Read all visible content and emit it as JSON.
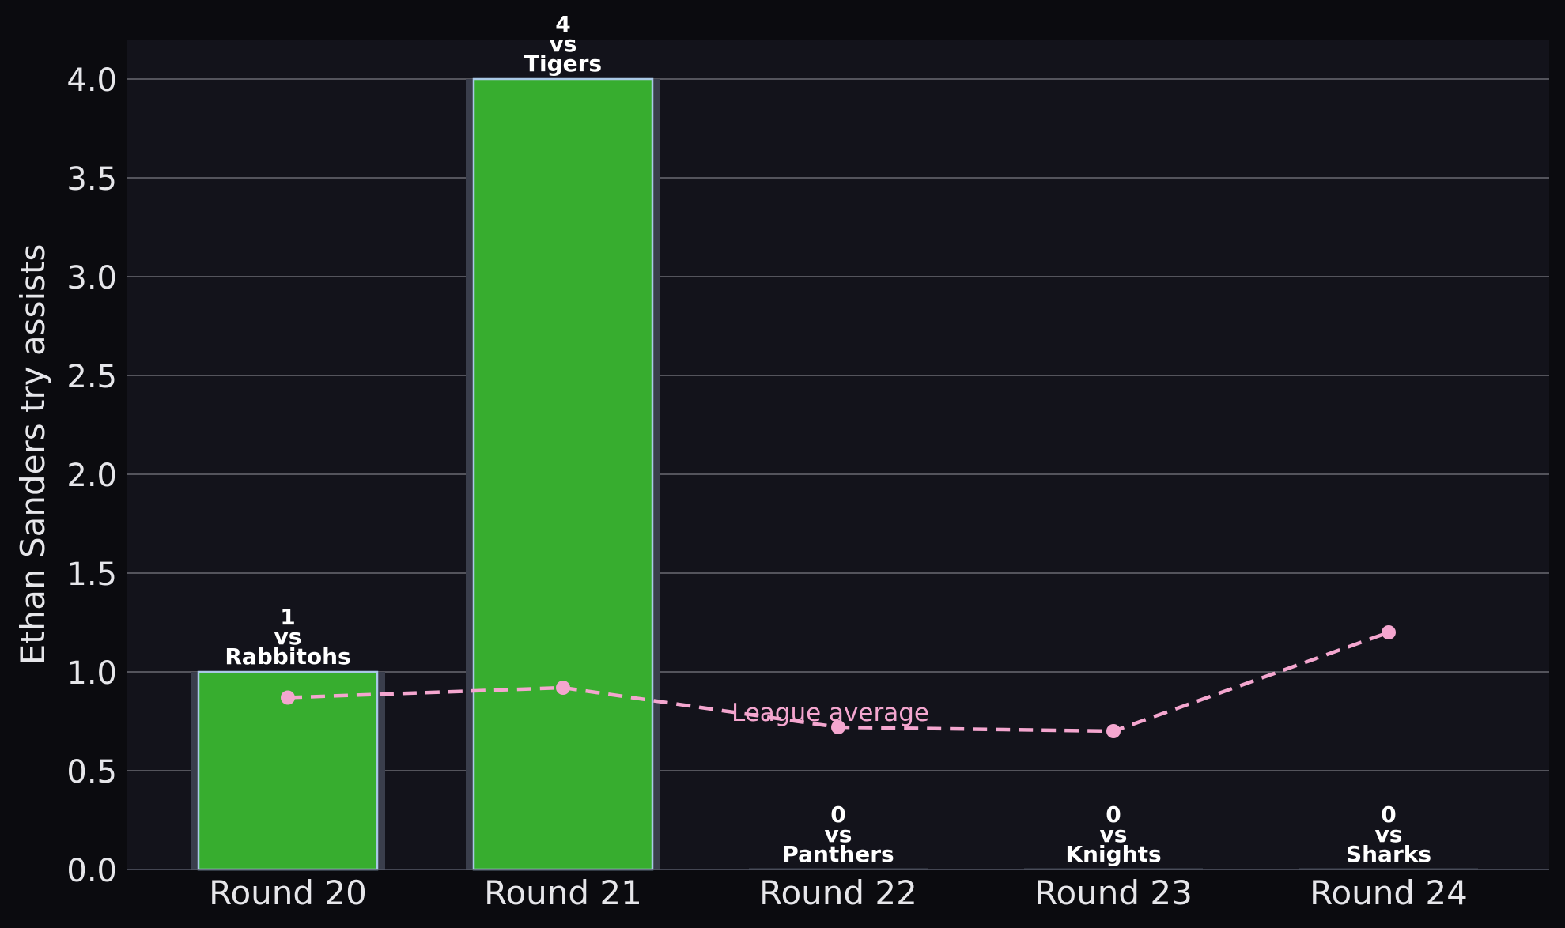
{
  "chart_data": {
    "type": "bar",
    "categories": [
      "Round 20",
      "Round 21",
      "Round 22",
      "Round 23",
      "Round 24"
    ],
    "opponents": [
      "Rabbitohs",
      "Tigers",
      "Panthers",
      "Knights",
      "Sharks"
    ],
    "vs_text": "vs",
    "values": [
      1,
      4,
      0,
      0,
      0
    ],
    "line_series": {
      "name": "League average",
      "values": [
        0.87,
        0.92,
        0.72,
        0.7,
        1.2
      ],
      "style": "dashed",
      "color": "#f4a6cf"
    },
    "ylabel": "Ethan Sanders try assists",
    "xlabel": "",
    "ylim": [
      0,
      4.2
    ],
    "yticks": [
      "0.0",
      "0.5",
      "1.0",
      "1.5",
      "2.0",
      "2.5",
      "3.0",
      "3.5",
      "4.0"
    ],
    "grid": "horizontal",
    "colors": {
      "background": "#0b0b0f",
      "plot_background": "#13131b",
      "bar_fill": "#37ad2f",
      "bar_edge": "#a9c8e6",
      "bar_halo": "#3a3e4c",
      "grid": "#6a6a72",
      "text": "#e6e6ea"
    }
  }
}
